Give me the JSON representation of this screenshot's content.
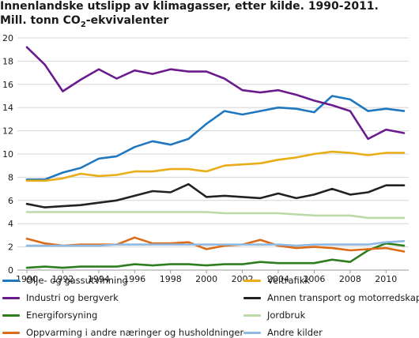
{
  "header": {
    "title": "Innenlandske utslipp av klimagasser, etter kilde. 1990-2011.",
    "subtitle_pre": "Mill. tonn CO",
    "subtitle_sub": "2",
    "subtitle_post": "-ekvivalenter"
  },
  "chart_data": {
    "type": "line",
    "title": "Innenlandske utslipp av klimagasser, etter kilde. 1990-2011.",
    "subtitle": "Mill. tonn CO2-ekvivalenter",
    "xlabel": "",
    "ylabel": "",
    "x": [
      1990,
      1991,
      1992,
      1993,
      1994,
      1995,
      1996,
      1997,
      1998,
      1999,
      2000,
      2001,
      2002,
      2003,
      2004,
      2005,
      2006,
      2007,
      2008,
      2009,
      2010,
      2011
    ],
    "xlim": [
      1990,
      2011
    ],
    "ylim": [
      0,
      20
    ],
    "x_ticks": [
      1990,
      1992,
      1994,
      1996,
      1998,
      2000,
      2002,
      2004,
      2006,
      2008,
      2010
    ],
    "y_ticks": [
      0,
      2,
      4,
      6,
      8,
      10,
      12,
      14,
      16,
      18,
      20
    ],
    "grid": "horizontal",
    "legend_position": "bottom",
    "series": [
      {
        "name": "Olje- og gassutvinning",
        "color": "#1f77c0",
        "values": [
          7.8,
          7.8,
          8.4,
          8.8,
          9.6,
          9.8,
          10.6,
          11.1,
          10.8,
          11.3,
          12.6,
          13.7,
          13.4,
          13.7,
          14.0,
          13.9,
          13.6,
          15.0,
          14.7,
          13.7,
          13.9,
          13.7
        ]
      },
      {
        "name": "Veitrafikk",
        "color": "#e8ad17",
        "values": [
          7.7,
          7.7,
          7.9,
          8.3,
          8.1,
          8.2,
          8.5,
          8.5,
          8.7,
          8.7,
          8.5,
          9.0,
          9.1,
          9.2,
          9.5,
          9.7,
          10.0,
          10.2,
          10.1,
          9.9,
          10.1,
          10.1
        ]
      },
      {
        "name": "Industri og bergverk",
        "color": "#6a1b8e",
        "values": [
          19.2,
          17.7,
          15.4,
          16.4,
          17.3,
          16.5,
          17.2,
          16.9,
          17.3,
          17.1,
          17.1,
          16.5,
          15.5,
          15.3,
          15.5,
          15.1,
          14.6,
          14.2,
          13.7,
          11.3,
          12.1,
          11.8
        ]
      },
      {
        "name": "Annen transport og motorredskaper",
        "color": "#222222",
        "values": [
          5.7,
          5.4,
          5.5,
          5.6,
          5.8,
          6.0,
          6.4,
          6.8,
          6.7,
          7.4,
          6.3,
          6.4,
          6.3,
          6.2,
          6.6,
          6.2,
          6.5,
          7.0,
          6.5,
          6.7,
          7.3,
          7.3
        ]
      },
      {
        "name": "Energiforsyning",
        "color": "#2e7d1e",
        "values": [
          0.2,
          0.3,
          0.2,
          0.3,
          0.3,
          0.3,
          0.5,
          0.4,
          0.5,
          0.5,
          0.4,
          0.5,
          0.5,
          0.7,
          0.6,
          0.6,
          0.6,
          0.9,
          0.7,
          1.7,
          2.3,
          2.1
        ]
      },
      {
        "name": "Jordbruk",
        "color": "#bcd9a8",
        "values": [
          5.0,
          5.0,
          5.0,
          5.0,
          5.0,
          5.0,
          5.0,
          5.0,
          5.0,
          5.0,
          5.0,
          4.9,
          4.9,
          4.9,
          4.9,
          4.8,
          4.7,
          4.7,
          4.7,
          4.5,
          4.5,
          4.5
        ]
      },
      {
        "name": "Oppvarming i andre næringer og husholdninger",
        "color": "#dd6a14",
        "values": [
          2.7,
          2.3,
          2.1,
          2.2,
          2.2,
          2.2,
          2.8,
          2.3,
          2.3,
          2.4,
          1.8,
          2.1,
          2.2,
          2.6,
          2.1,
          1.9,
          2.0,
          1.9,
          1.7,
          1.8,
          1.9,
          1.6
        ]
      },
      {
        "name": "Andre kilder",
        "color": "#8fb9e3",
        "values": [
          2.1,
          2.1,
          2.1,
          2.1,
          2.1,
          2.2,
          2.2,
          2.2,
          2.2,
          2.2,
          2.2,
          2.2,
          2.2,
          2.2,
          2.2,
          2.1,
          2.2,
          2.2,
          2.2,
          2.2,
          2.4,
          2.5
        ]
      }
    ]
  }
}
